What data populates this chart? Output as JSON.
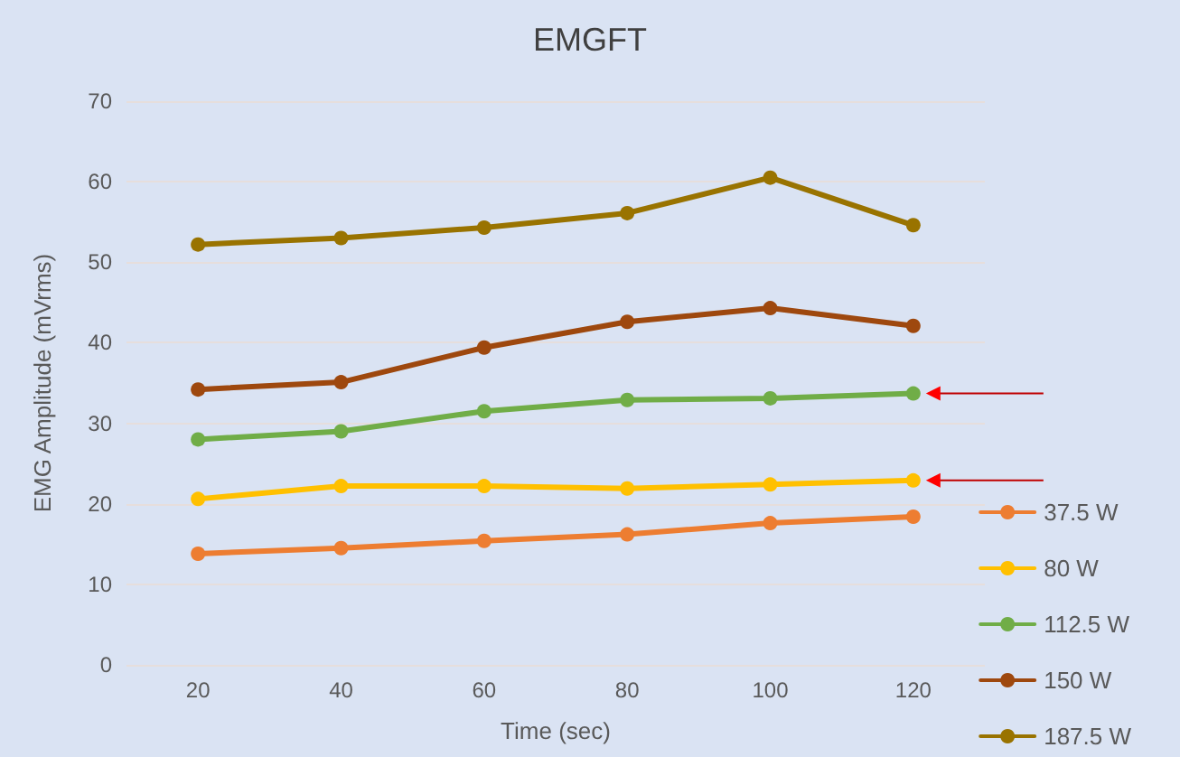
{
  "chart_data": {
    "type": "line",
    "title": "EMGFT",
    "xlabel": "Time (sec)",
    "ylabel": "EMG Amplitude (mVrms)",
    "categories": [
      "20",
      "40",
      "60",
      "80",
      "100",
      "120"
    ],
    "series": [
      {
        "name": "37.5 W",
        "color": "#ed7d31",
        "values": [
          13.8,
          14.5,
          15.4,
          16.2,
          17.6,
          18.4
        ]
      },
      {
        "name": "80 W",
        "color": "#ffc000",
        "values": [
          20.6,
          22.2,
          22.2,
          21.9,
          22.4,
          22.9
        ]
      },
      {
        "name": "112.5 W",
        "color": "#70ad47",
        "values": [
          28.0,
          29.0,
          31.5,
          32.9,
          33.1,
          33.7
        ]
      },
      {
        "name": "150 W",
        "color": "#9e480e",
        "values": [
          34.2,
          35.1,
          39.4,
          42.6,
          44.3,
          42.1
        ]
      },
      {
        "name": "187.5 W",
        "color": "#997300",
        "values": [
          52.2,
          53.0,
          54.3,
          56.1,
          60.5,
          54.6
        ]
      }
    ],
    "ylim": [
      0,
      70
    ],
    "yticks": [
      0,
      10,
      20,
      30,
      40,
      50,
      60,
      70
    ],
    "grid": "y",
    "legend": "right",
    "marker": "circle",
    "line_style": "solid"
  }
}
